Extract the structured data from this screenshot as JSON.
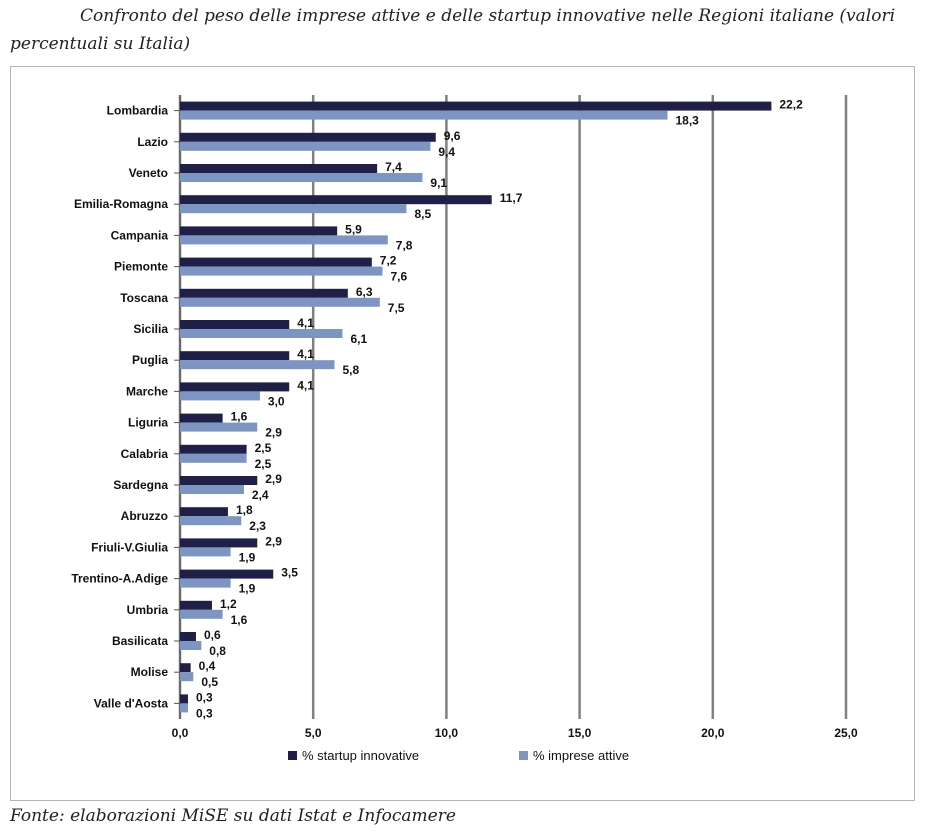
{
  "caption": "Confronto del peso delle imprese attive e delle startup innovative nelle Regioni italiane (valori percentuali su Italia)",
  "source": "Fonte: elaborazioni MiSE su dati Istat e Infocamere",
  "colors": {
    "startup": "#1f1f48",
    "imprese": "#7d95c2",
    "grid": "#808080"
  },
  "chart_data": {
    "type": "bar",
    "orientation": "horizontal",
    "categories": [
      "Lombardia",
      "Lazio",
      "Veneto",
      "Emilia-Romagna",
      "Campania",
      "Piemonte",
      "Toscana",
      "Sicilia",
      "Puglia",
      "Marche",
      "Liguria",
      "Calabria",
      "Sardegna",
      "Abruzzo",
      "Friuli-V.Giulia",
      "Trentino-A.Adige",
      "Umbria",
      "Basilicata",
      "Molise",
      "Valle d'Aosta"
    ],
    "series": [
      {
        "name": "% startup innovative",
        "values": [
          22.2,
          9.6,
          7.4,
          11.7,
          5.9,
          7.2,
          6.3,
          4.1,
          4.1,
          4.1,
          1.6,
          2.5,
          2.9,
          1.8,
          2.9,
          3.5,
          1.2,
          0.6,
          0.4,
          0.3
        ],
        "labels": [
          "22,2",
          "9,6",
          "7,4",
          "11,7",
          "5,9",
          "7,2",
          "6,3",
          "4,1",
          "4,1",
          "4,1",
          "1,6",
          "2,5",
          "2,9",
          "1,8",
          "2,9",
          "3,5",
          "1,2",
          "0,6",
          "0,4",
          "0,3"
        ]
      },
      {
        "name": "% imprese attive",
        "values": [
          18.3,
          9.4,
          9.1,
          8.5,
          7.8,
          7.6,
          7.5,
          6.1,
          5.8,
          3.0,
          2.9,
          2.5,
          2.4,
          2.3,
          1.9,
          1.9,
          1.6,
          0.8,
          0.5,
          0.3
        ],
        "labels": [
          "18,3",
          "9,4",
          "9,1",
          "8,5",
          "7,8",
          "7,6",
          "7,5",
          "6,1",
          "5,8",
          "3,0",
          "2,9",
          "2,5",
          "2,4",
          "2,3",
          "1,9",
          "1,9",
          "1,6",
          "0,8",
          "0,5",
          "0,3"
        ]
      }
    ],
    "xlim": [
      0,
      25
    ],
    "xticks": [
      "0,0",
      "5,0",
      "10,0",
      "15,0",
      "20,0",
      "25,0"
    ],
    "grid": "vertical",
    "legend": "bottom"
  }
}
